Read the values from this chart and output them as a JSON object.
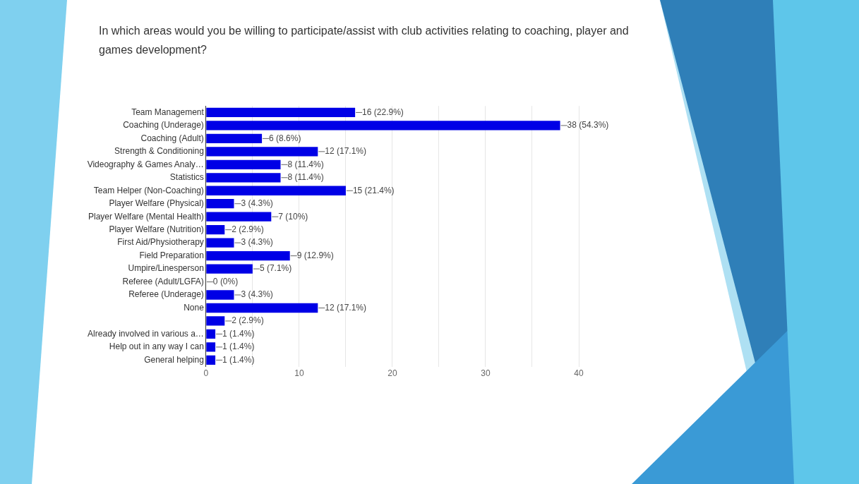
{
  "chart_data": {
    "type": "bar",
    "orientation": "horizontal",
    "title": "In which areas would you be willing to participate/assist with club activities relating to coaching, player and games development?",
    "categories": [
      "Team Management",
      "Coaching (Underage)",
      "Coaching (Adult)",
      "Strength & Conditioning",
      "Videography & Games Analy…",
      "Statistics",
      "Team Helper (Non-Coaching)",
      "Player Welfare (Physical)",
      "Player Welfare (Mental Health)",
      "Player Welfare (Nutrition)",
      "First Aid/Physiotherapy",
      "Field Preparation",
      "Umpire/Linesperson",
      "Referee (Adult/LGFA)",
      "Referee (Underage)",
      "None",
      null,
      "Already involved in various a…",
      "Help out in any way I can",
      "General helping"
    ],
    "values": [
      16,
      38,
      6,
      12,
      8,
      8,
      15,
      3,
      7,
      2,
      3,
      9,
      5,
      0,
      3,
      12,
      2,
      1,
      1,
      1
    ],
    "value_labels": [
      "16 (22.9%)",
      "38 (54.3%)",
      "6 (8.6%)",
      "12 (17.1%)",
      "8 (11.4%)",
      "8 (11.4%)",
      "15 (21.4%)",
      "3 (4.3%)",
      "7 (10%)",
      "2 (2.9%)",
      "3 (4.3%)",
      "9 (12.9%)",
      "5 (7.1%)",
      "0 (0%)",
      "3 (4.3%)",
      "12 (17.1%)",
      "2 (2.9%)",
      "1 (1.4%)",
      "1 (1.4%)",
      "1 (1.4%)"
    ],
    "color": "#0000e6",
    "xlim": [
      0,
      40
    ],
    "xticks": [
      0,
      {
        "value": 5,
        "label": null
      },
      10,
      {
        "value": 15,
        "label": null
      },
      20,
      {
        "value": 25,
        "label": null
      },
      30,
      {
        "value": 35,
        "label": null
      },
      40
    ],
    "grid": "x"
  }
}
